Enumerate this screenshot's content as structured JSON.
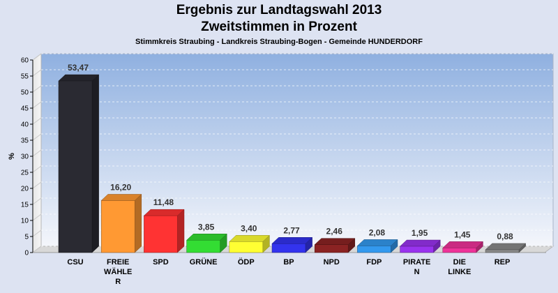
{
  "chart_data": {
    "type": "bar",
    "title": "Ergebnis zur Landtagswahl 2013",
    "subtitle": "Zweitstimmen in Prozent",
    "subsubtitle": "Stimmkreis Straubing - Landkreis Straubing-Bogen - Gemeinde HUNDERDORF",
    "ylabel": "%",
    "ylim": [
      0,
      60
    ],
    "yticks": [
      0,
      5,
      10,
      15,
      20,
      25,
      30,
      35,
      40,
      45,
      50,
      55,
      60
    ],
    "categories": [
      "CSU",
      "FREIE WÄHLER",
      "SPD",
      "GRÜNE",
      "ÖDP",
      "BP",
      "NPD",
      "FDP",
      "PIRATEN",
      "DIE LINKE",
      "REP"
    ],
    "category_lines": [
      [
        "CSU"
      ],
      [
        "FREIE",
        "WÄHLE",
        "R"
      ],
      [
        "SPD"
      ],
      [
        "GRÜNE"
      ],
      [
        "ÖDP"
      ],
      [
        "BP"
      ],
      [
        "NPD"
      ],
      [
        "FDP"
      ],
      [
        "PIRATE",
        "N"
      ],
      [
        "DIE",
        "LINKE"
      ],
      [
        "REP"
      ]
    ],
    "values": [
      53.47,
      16.2,
      11.48,
      3.85,
      3.4,
      2.77,
      2.46,
      2.08,
      1.95,
      1.45,
      0.88
    ],
    "value_labels": [
      "53,47",
      "16,20",
      "11,48",
      "3,85",
      "3,40",
      "2,77",
      "2,46",
      "2,08",
      "1,95",
      "1,45",
      "0,88"
    ],
    "colors": [
      "#2a2a32",
      "#ff9933",
      "#ff3333",
      "#33dd33",
      "#ffff33",
      "#3333ee",
      "#8b2323",
      "#3399ee",
      "#9933ee",
      "#ee3399",
      "#888888"
    ],
    "grid": true,
    "legend": "none"
  }
}
